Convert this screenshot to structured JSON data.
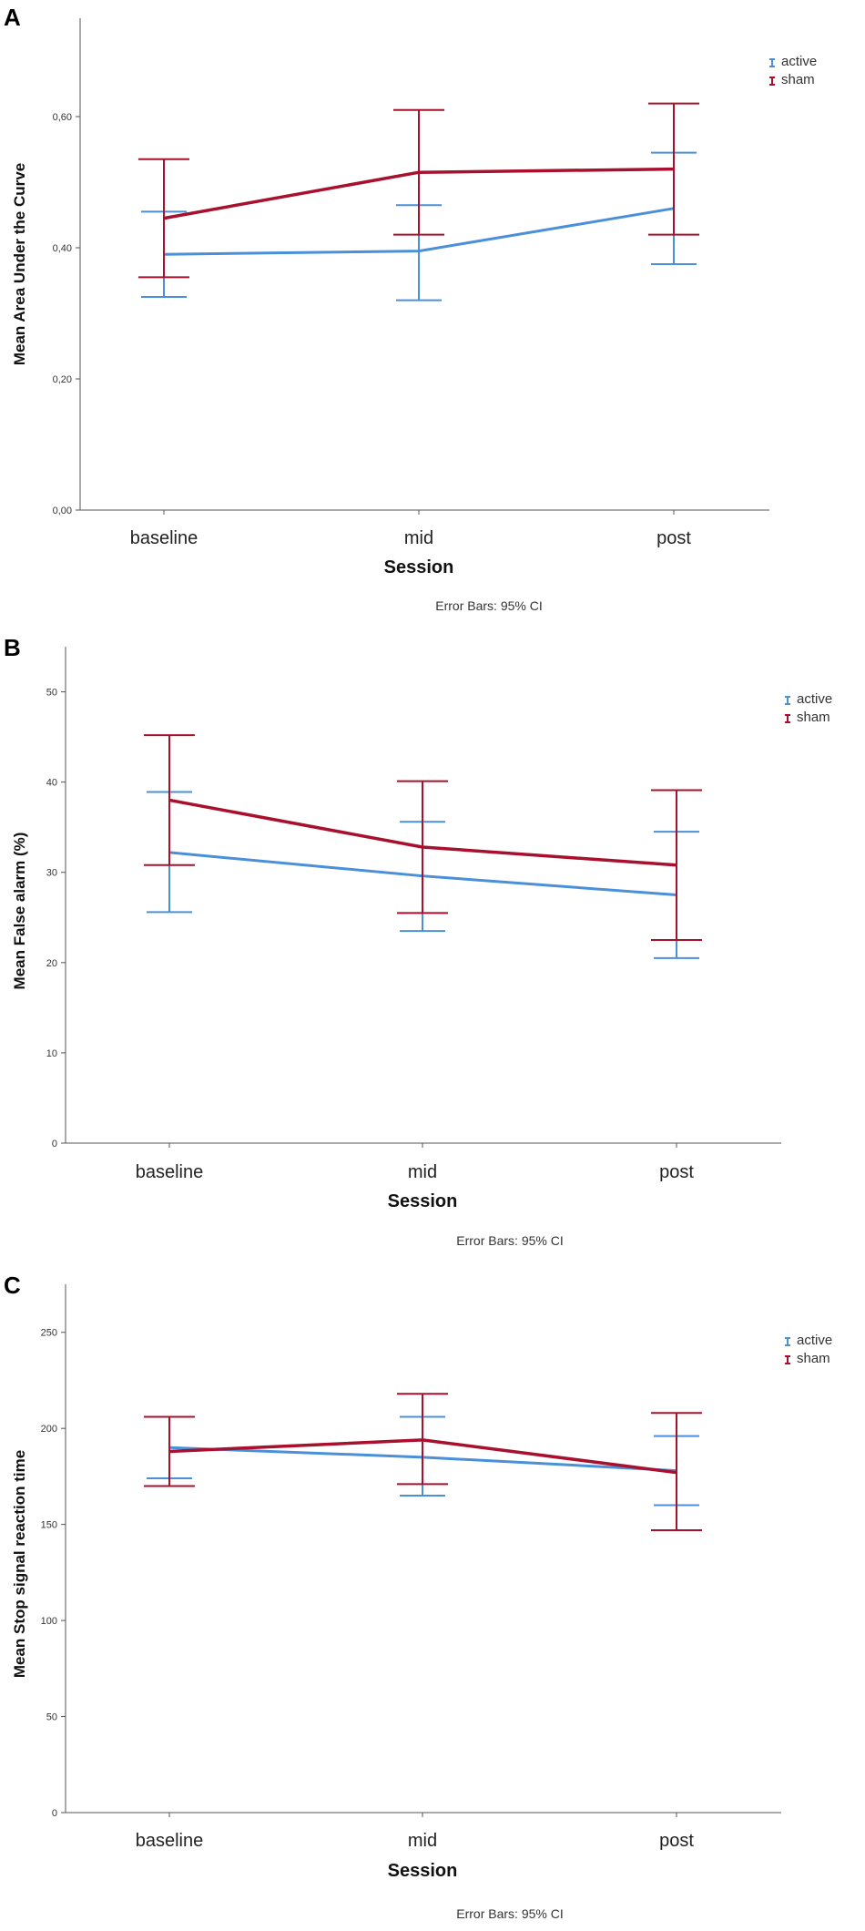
{
  "colors": {
    "active": "#4a90d9",
    "sham": "#a8102e",
    "axis": "#555555"
  },
  "chart_data": [
    {
      "panel": "A",
      "type": "line",
      "title": "",
      "xlabel": "Session",
      "ylabel": "Mean Area Under the Curve",
      "categories": [
        "baseline",
        "mid",
        "post"
      ],
      "ylim": [
        0,
        0.75
      ],
      "yticks": [
        0,
        0.2,
        0.4,
        0.6
      ],
      "ytick_labels": [
        "0,00",
        "0,20",
        "0,40",
        "0,60"
      ],
      "grid": false,
      "legend": "top-right",
      "footnote": "Error Bars: 95% CI",
      "series": [
        {
          "name": "active",
          "values": [
            0.39,
            0.395,
            0.46
          ],
          "ci_low": [
            0.325,
            0.32,
            0.375
          ],
          "ci_high": [
            0.455,
            0.465,
            0.545
          ]
        },
        {
          "name": "sham",
          "values": [
            0.445,
            0.515,
            0.52
          ],
          "ci_low": [
            0.355,
            0.42,
            0.42
          ],
          "ci_high": [
            0.535,
            0.61,
            0.62
          ]
        }
      ]
    },
    {
      "panel": "B",
      "type": "line",
      "title": "",
      "xlabel": "Session",
      "ylabel": "Mean False alarm (%)",
      "categories": [
        "baseline",
        "mid",
        "post"
      ],
      "ylim": [
        0,
        55
      ],
      "yticks": [
        0,
        10,
        20,
        30,
        40,
        50
      ],
      "ytick_labels": [
        "0",
        "10",
        "20",
        "30",
        "40",
        "50"
      ],
      "grid": false,
      "legend": "top-right",
      "footnote": "Error Bars: 95% CI",
      "series": [
        {
          "name": "active",
          "values": [
            32.2,
            29.6,
            27.5
          ],
          "ci_low": [
            25.6,
            23.5,
            20.5
          ],
          "ci_high": [
            38.9,
            35.6,
            34.5
          ]
        },
        {
          "name": "sham",
          "values": [
            38,
            32.8,
            30.8
          ],
          "ci_low": [
            30.8,
            25.5,
            22.5
          ],
          "ci_high": [
            45.2,
            40.1,
            39.1
          ]
        }
      ]
    },
    {
      "panel": "C",
      "type": "line",
      "title": "",
      "xlabel": "Session",
      "ylabel": "Mean Stop signal reaction time",
      "categories": [
        "baseline",
        "mid",
        "post"
      ],
      "ylim": [
        0,
        275
      ],
      "yticks": [
        0,
        50,
        100,
        150,
        200,
        250
      ],
      "ytick_labels": [
        "0",
        "50",
        "100",
        "150",
        "200",
        "250"
      ],
      "grid": false,
      "legend": "top-right",
      "footnote": "Error Bars: 95% CI",
      "series": [
        {
          "name": "active",
          "values": [
            190,
            185,
            178
          ],
          "ci_low": [
            174,
            165,
            160
          ],
          "ci_high": [
            206,
            206,
            196
          ]
        },
        {
          "name": "sham",
          "values": [
            188,
            194,
            177
          ],
          "ci_low": [
            170,
            171,
            147
          ],
          "ci_high": [
            206,
            218,
            208
          ]
        }
      ]
    }
  ]
}
